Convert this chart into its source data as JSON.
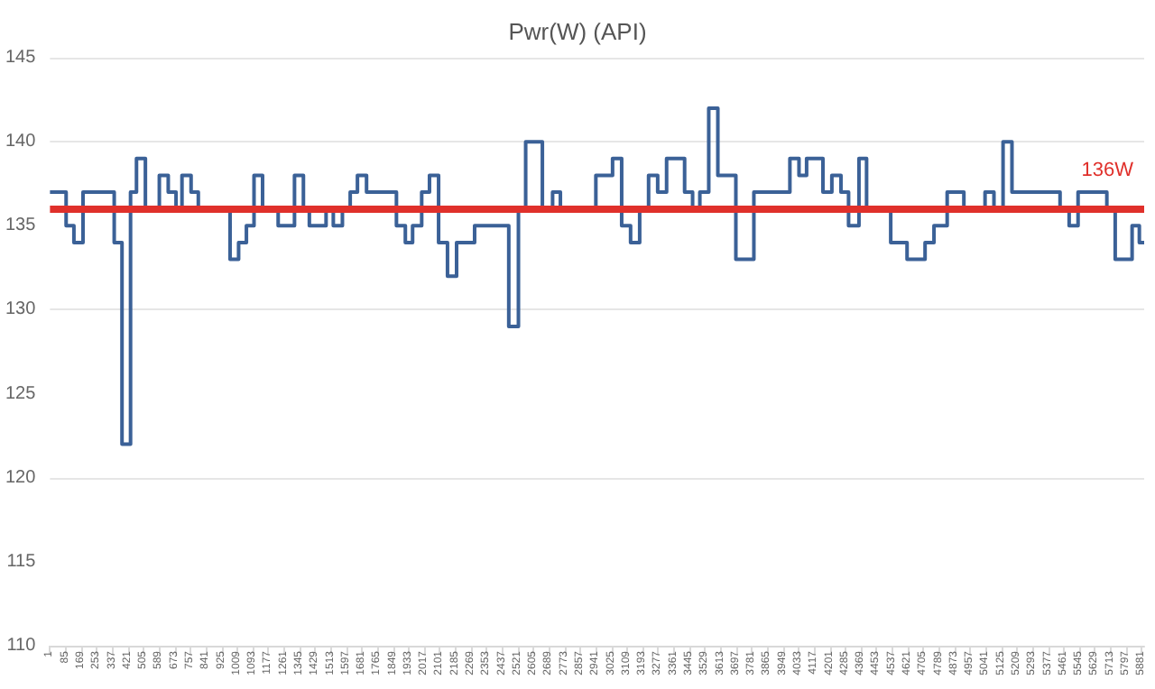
{
  "chart_data": {
    "type": "step",
    "title": "Pwr(W) (API)",
    "x": [
      1,
      88,
      130,
      179,
      347,
      389,
      435,
      467,
      515,
      590,
      638,
      680,
      712,
      761,
      800,
      971,
      1017,
      1059,
      1100,
      1146,
      1230,
      1318,
      1366,
      1398,
      1488,
      1527,
      1576,
      1618,
      1657,
      1706,
      1867,
      1915,
      1954,
      2003,
      2045,
      2094,
      2142,
      2191,
      2288,
      2472,
      2524,
      2563,
      2653,
      2708,
      2750,
      2941,
      3031,
      3080,
      3128,
      3177,
      3225,
      3274,
      3322,
      3419,
      3462,
      3501,
      3549,
      3598,
      3695,
      3792,
      3986,
      4035,
      4076,
      4164,
      4212,
      4261,
      4302,
      4358,
      4399,
      4529,
      4617,
      4714,
      4762,
      4833,
      4923,
      5037,
      5085,
      5134,
      5182,
      5441,
      5490,
      5538,
      5693,
      5738,
      5829,
      5868,
      5894
    ],
    "series": [
      {
        "color": "#3b6197",
        "values": [
          137,
          135,
          134,
          137,
          134,
          122,
          137,
          139,
          136,
          138,
          137,
          136,
          138,
          137,
          136,
          133,
          134,
          135,
          138,
          136,
          135,
          138,
          136,
          135,
          136,
          135,
          136,
          137,
          138,
          137,
          135,
          134,
          135,
          137,
          138,
          134,
          132,
          134,
          135,
          129,
          136,
          140,
          136,
          137,
          136,
          138,
          139,
          135,
          134,
          136,
          138,
          137,
          139,
          137,
          136,
          137,
          142,
          138,
          133,
          137,
          139,
          138,
          139,
          137,
          138,
          137,
          135,
          139,
          136,
          134,
          133,
          134,
          135,
          137,
          136,
          137,
          136,
          140,
          137,
          136,
          135,
          137,
          136,
          133,
          135,
          134,
          134
        ]
      }
    ],
    "xlim": [
      1,
      5894
    ],
    "xticks": [
      1,
      85,
      169,
      253,
      337,
      421,
      505,
      589,
      673,
      757,
      841,
      925,
      1009,
      1093,
      1177,
      1261,
      1345,
      1429,
      1513,
      1597,
      1681,
      1765,
      1849,
      1933,
      2017,
      2101,
      2185,
      2269,
      2353,
      2437,
      2521,
      2605,
      2689,
      2773,
      2857,
      2941,
      3025,
      3109,
      3193,
      3277,
      3361,
      3445,
      3529,
      3613,
      3697,
      3781,
      3865,
      3949,
      4033,
      4117,
      4201,
      4285,
      4369,
      4453,
      4537,
      4621,
      4705,
      4789,
      4873,
      4957,
      5041,
      5125,
      5209,
      5293,
      5377,
      5461,
      5545,
      5629,
      5713,
      5797,
      5881
    ],
    "ylim": [
      110,
      145
    ],
    "yticks": [
      110,
      115,
      120,
      125,
      130,
      135,
      140,
      145
    ],
    "grid": "y",
    "marker": "none",
    "line_style": "solid",
    "ref_lines": [
      {
        "axis": "y",
        "value": 136,
        "label": "136W",
        "color": "#e0302b"
      }
    ]
  }
}
